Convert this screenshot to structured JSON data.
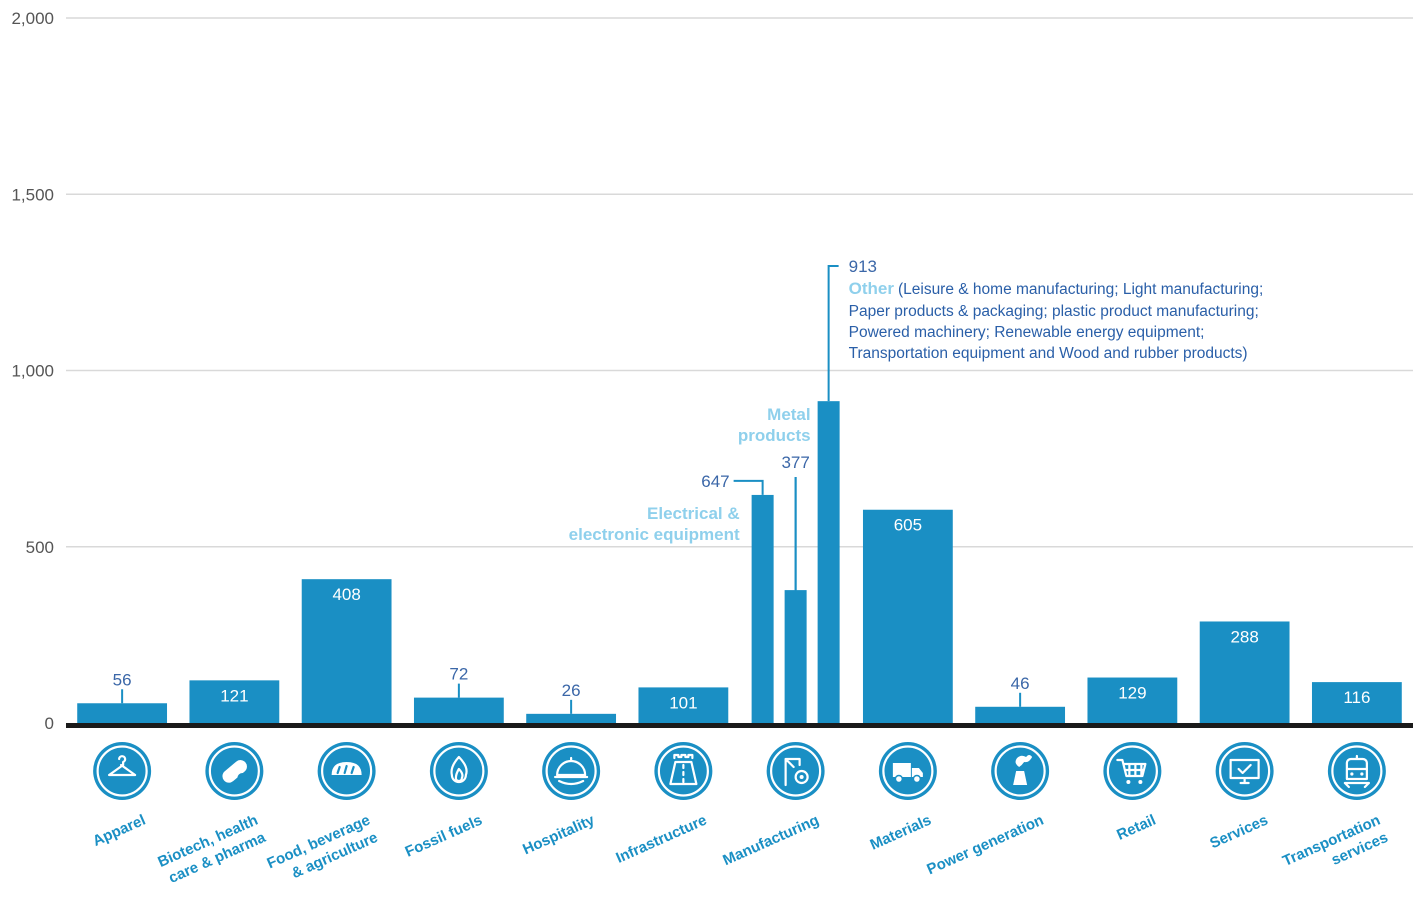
{
  "chart_data": {
    "type": "bar",
    "ylim": [
      0,
      2000
    ],
    "yticks": [
      0,
      500,
      1000,
      1500,
      2000
    ],
    "ytick_labels": [
      "0",
      "500",
      "1,000",
      "1,500",
      "2,000"
    ],
    "grid": true,
    "bar_color": "#1a8fc4",
    "label_color": "#3b67a8",
    "categories": [
      {
        "label": [
          "Apparel"
        ],
        "value": 56,
        "value_label": "56",
        "icon": "hanger-icon"
      },
      {
        "label": [
          "Biotech, health",
          "care & pharma"
        ],
        "value": 121,
        "value_label": "121",
        "icon": "pill-icon"
      },
      {
        "label": [
          "Food, beverage",
          "& agriculture"
        ],
        "value": 408,
        "value_label": "408",
        "icon": "bread-icon"
      },
      {
        "label": [
          "Fossil fuels"
        ],
        "value": 72,
        "value_label": "72",
        "icon": "flame-icon"
      },
      {
        "label": [
          "Hospitality"
        ],
        "value": 26,
        "value_label": "26",
        "icon": "cloche-icon"
      },
      {
        "label": [
          "Infrastructure"
        ],
        "value": 101,
        "value_label": "101",
        "icon": "road-icon"
      },
      {
        "label": [
          "Manufacturing"
        ],
        "icon": "crane-gear-icon",
        "sub_bars": [
          {
            "name": [
              "Electrical &",
              "electronic equipment"
            ],
            "value": 647,
            "value_label": "647"
          },
          {
            "name": [
              "Metal",
              "products"
            ],
            "value": 377,
            "value_label": "377"
          },
          {
            "name": [
              "Other"
            ],
            "value": 913,
            "value_label": "913"
          }
        ]
      },
      {
        "label": [
          "Materials"
        ],
        "value": 605,
        "value_label": "605",
        "icon": "truck-icon"
      },
      {
        "label": [
          "Power generation"
        ],
        "value": 46,
        "value_label": "46",
        "icon": "power-plant-icon"
      },
      {
        "label": [
          "Retail"
        ],
        "value": 129,
        "value_label": "129",
        "icon": "cart-icon"
      },
      {
        "label": [
          "Services"
        ],
        "value": 288,
        "value_label": "288",
        "icon": "monitor-icon"
      },
      {
        "label": [
          "Transportation",
          "services"
        ],
        "value": 116,
        "value_label": "116",
        "icon": "train-icon"
      }
    ],
    "other_note": [
      "(Leisure & home manufacturing; Light manufacturing;",
      "Paper products & packaging; plastic product manufacturing;",
      "Powered machinery; Renewable energy equipment;",
      "Transportation equipment and Wood and rubber products)"
    ]
  }
}
